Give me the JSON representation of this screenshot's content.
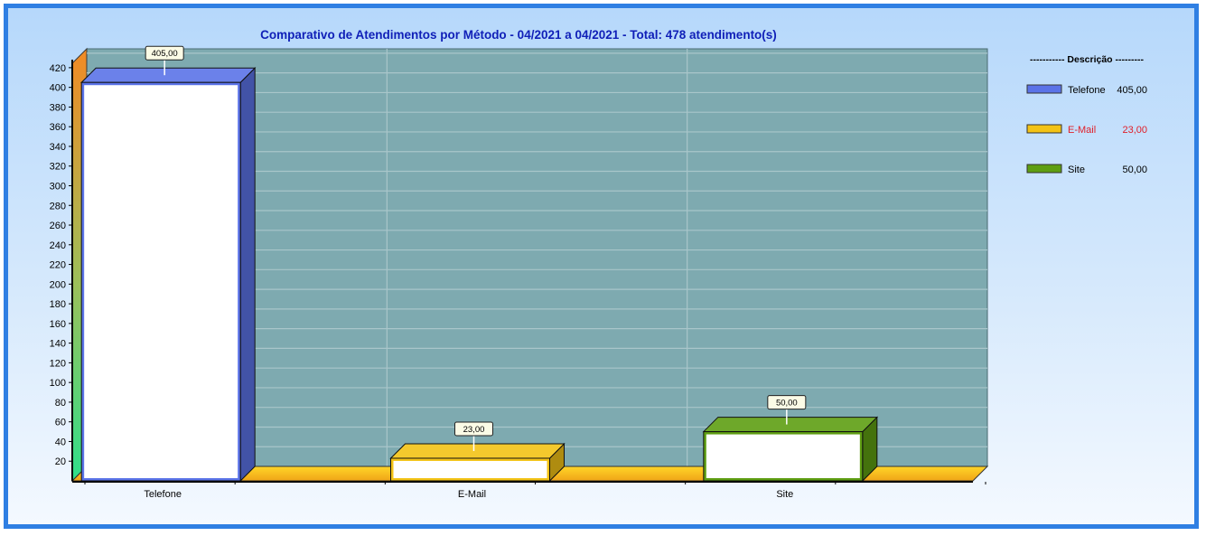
{
  "chart_data": {
    "type": "bar",
    "title": "Comparativo de Atendimentos por Método - 04/2021 a 04/2021 - Total: 478 atendimento(s)",
    "categories": [
      "Telefone",
      "E-Mail",
      "Site"
    ],
    "values": [
      405,
      23,
      50
    ],
    "value_labels": [
      "405,00",
      "23,00",
      "50,00"
    ],
    "colors": [
      "#5b73e8",
      "#f3c316",
      "#5e9e12"
    ],
    "ylim": [
      0,
      430
    ],
    "yticks": [
      20,
      40,
      60,
      80,
      100,
      120,
      140,
      160,
      180,
      200,
      220,
      240,
      260,
      280,
      300,
      320,
      340,
      360,
      380,
      400,
      420
    ],
    "xlabel": "",
    "ylabel": "",
    "grid": true,
    "legend": {
      "position": "right",
      "title": "----------- Descrição ---------",
      "entries": [
        {
          "name": "Telefone",
          "value": "405,00",
          "text_color": "#000000"
        },
        {
          "name": "E-Mail",
          "value": "23,00",
          "text_color": "#e0202a"
        },
        {
          "name": "Site",
          "value": "50,00",
          "text_color": "#000000"
        }
      ]
    }
  }
}
